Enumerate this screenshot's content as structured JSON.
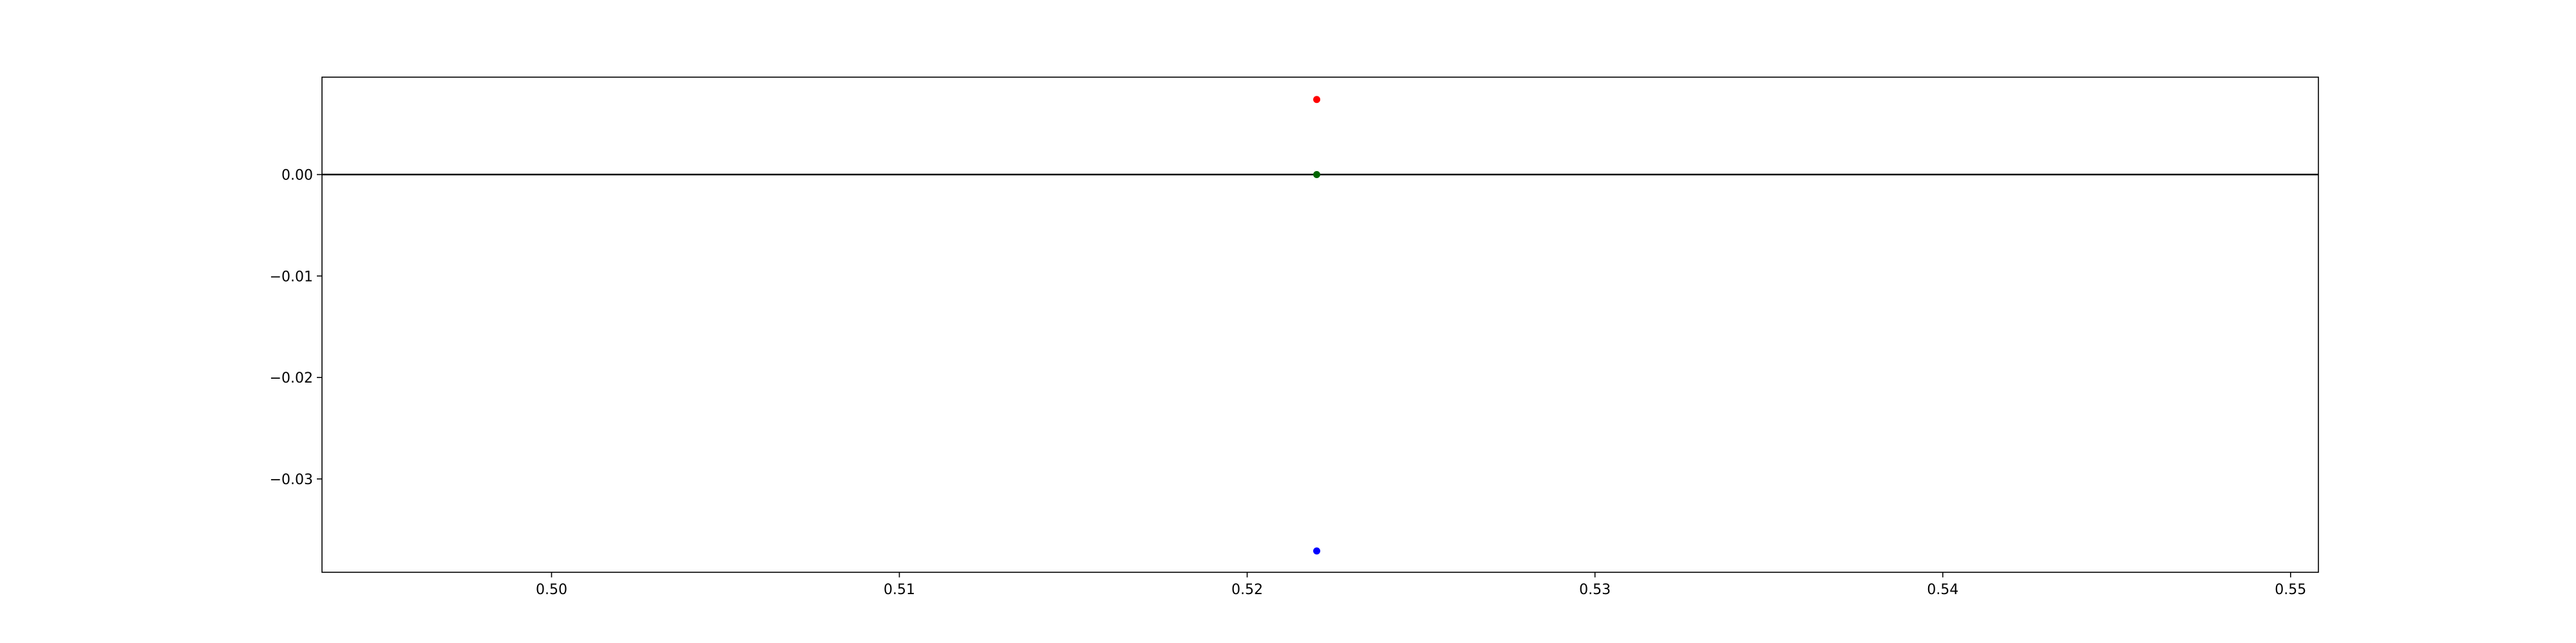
{
  "chart_data": {
    "type": "scatter",
    "title": "",
    "xlabel": "",
    "ylabel": "",
    "xlim": [
      0.4934,
      0.5508
    ],
    "ylim": [
      -0.0392,
      0.0096
    ],
    "grid": false,
    "xticks": [
      0.5,
      0.51,
      0.52,
      0.53,
      0.54,
      0.55
    ],
    "xtick_labels": [
      "0.50",
      "0.51",
      "0.52",
      "0.53",
      "0.54",
      "0.55"
    ],
    "yticks": [
      0.0,
      -0.01,
      -0.02,
      -0.03
    ],
    "ytick_labels": [
      "0.00",
      "−0.01",
      "−0.02",
      "−0.03"
    ],
    "hline": {
      "y": 0.0,
      "color": "#000000"
    },
    "points": [
      {
        "x": 0.522,
        "y": 0.0074,
        "color": "#ff0000"
      },
      {
        "x": 0.522,
        "y": 0.0,
        "color": "#006400"
      },
      {
        "x": 0.522,
        "y": -0.0371,
        "color": "#0000ff"
      }
    ]
  }
}
